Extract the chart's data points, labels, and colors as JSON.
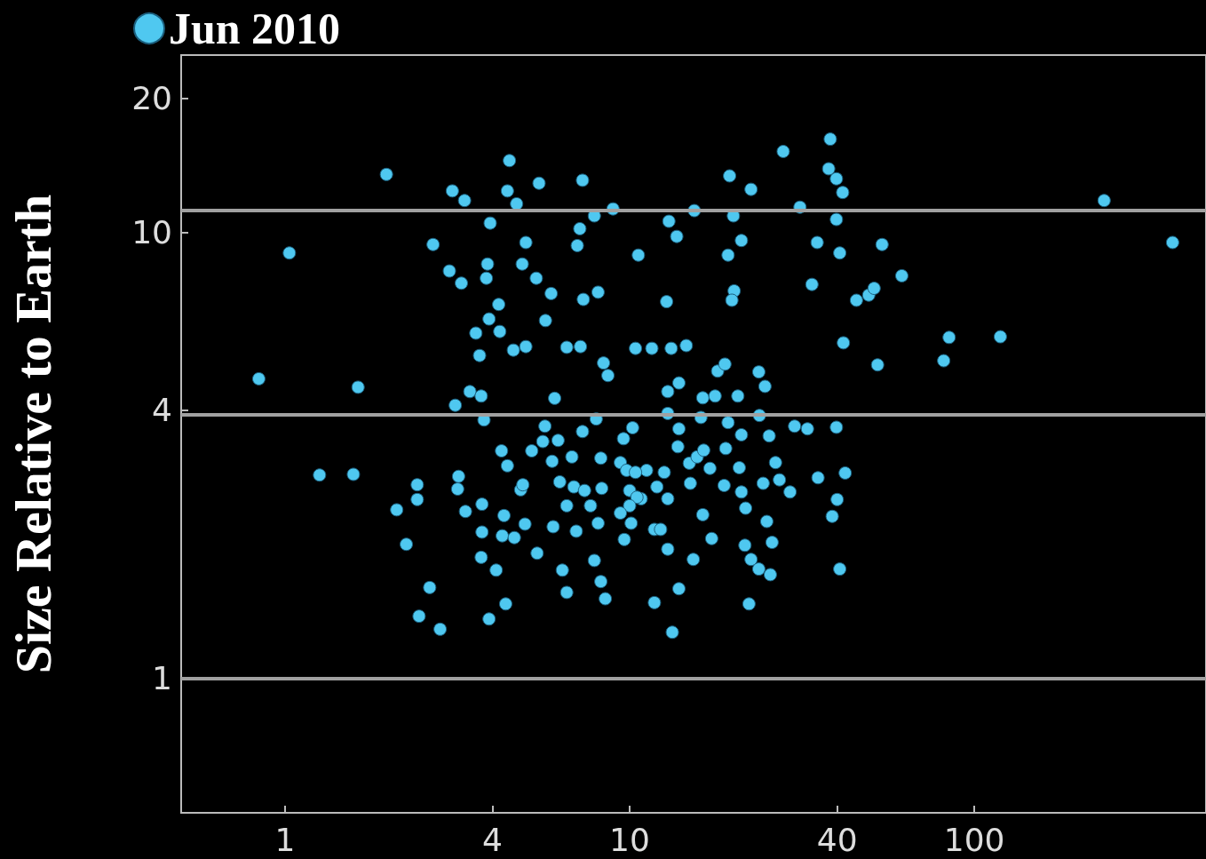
{
  "chart_data": {
    "type": "scatter",
    "ylabel": "Size Relative to Earth",
    "log": "xy",
    "grid": false,
    "legend": "top left",
    "marker": "circle",
    "xlim": [
      0.5,
      470
    ],
    "ylim": [
      0.5,
      25
    ],
    "xticks": [
      1,
      4,
      10,
      40,
      100
    ],
    "yticks": [
      1,
      4,
      10,
      20
    ],
    "ref_lines": [
      {
        "axis": "y",
        "value": 11.2,
        "color": "#a0a0a0"
      },
      {
        "axis": "y",
        "value": 3.9,
        "color": "#a0a0a0"
      },
      {
        "axis": "y",
        "value": 1,
        "color": "#a0a0a0"
      }
    ],
    "series": [
      {
        "name": "Jun 2010",
        "color": "#4fc8f0",
        "x": [
          0.84,
          1.03,
          1.26,
          1.58,
          1.63,
          1.97,
          2.11,
          2.25,
          2.42,
          2.42,
          2.45,
          2.63,
          2.82,
          2.69,
          3.0,
          3.06,
          3.25,
          3.32,
          3.12,
          3.19,
          3.17,
          3.34,
          3.44,
          3.58,
          3.67,
          3.71,
          3.78,
          3.73,
          3.73,
          3.71,
          3.84,
          3.87,
          3.94,
          3.91,
          4.17,
          4.2,
          3.91,
          4.1,
          4.25,
          4.42,
          4.32,
          4.27,
          4.37,
          4.42,
          4.48,
          4.6,
          4.7,
          4.88,
          5.0,
          5.0,
          4.83,
          4.97,
          4.63,
          5.36,
          5.46,
          5.7,
          5.92,
          6.06,
          5.68,
          5.39,
          6.38,
          6.57,
          6.0,
          5.96,
          6.27,
          6.57,
          7.05,
          7.3,
          7.34,
          7.17,
          7.2,
          8.1,
          7.9,
          8.95,
          8.4,
          8.65,
          8.0,
          7.3,
          8.25,
          8.3,
          7.9,
          8.25,
          8.5,
          7.0,
          8.1,
          9.6,
          10.2,
          9.65,
          10.1,
          10.4,
          10.6,
          11.6,
          12.8,
          13.0,
          13.7,
          13.2,
          14.6,
          12.9,
          13.9,
          12.9,
          13.9,
          13.8,
          12.6,
          12.9,
          12.9,
          13.9,
          13.3,
          11.8,
          11.8,
          10.8,
          11.2,
          15.3,
          15.4,
          16.3,
          17.3,
          16.1,
          16.3,
          17.7,
          18.0,
          18.9,
          19.3,
          19.5,
          20.0,
          20.1,
          19.8,
          21.1,
          20.6,
          19.3,
          19.0,
          18.8,
          20.8,
          21.1,
          21.1,
          21.7,
          21.6,
          22.5,
          22.2,
          22.5,
          23.7,
          24.7,
          23.7,
          25.6,
          25.9,
          25.0,
          24.4,
          25.4,
          26.5,
          27.2,
          29.2,
          23.8,
          27.9,
          30.1,
          31.2,
          32.8,
          33.8,
          35.0,
          35.2,
          37.8,
          38.2,
          39.8,
          41.5,
          39.8,
          40.7,
          41.7,
          39.8,
          40.0,
          38.7,
          42.2,
          40.7,
          45.5,
          49.4,
          51.2,
          54.0,
          52.4,
          61.6,
          81.5,
          84.5,
          119,
          238,
          376,
          9.4,
          9.8,
          10.4,
          10.0,
          10.5,
          12.3,
          12.0,
          15.0,
          14.9,
          15.7,
          16.4,
          17.1,
          10.0,
          9.4,
          6.89,
          7.4,
          7.7,
          6.57,
          6.8,
          5.6,
          5.2,
          6.2,
          4.9
        ],
        "values": [
          4.7,
          9.0,
          2.86,
          2.87,
          4.5,
          13.5,
          2.39,
          2.0,
          2.72,
          2.52,
          1.38,
          1.6,
          1.29,
          9.4,
          8.2,
          12.4,
          7.7,
          11.8,
          4.1,
          2.84,
          2.66,
          2.37,
          4.4,
          5.95,
          5.3,
          4.3,
          3.8,
          2.46,
          2.13,
          1.87,
          7.9,
          8.5,
          10.5,
          6.4,
          6.9,
          6.0,
          1.36,
          1.75,
          3.24,
          3.0,
          2.32,
          2.09,
          1.47,
          12.4,
          14.5,
          5.45,
          11.6,
          8.5,
          9.5,
          5.55,
          2.65,
          2.22,
          2.07,
          7.9,
          12.9,
          6.35,
          7.3,
          4.25,
          3.68,
          1.91,
          1.75,
          1.56,
          2.19,
          3.07,
          2.76,
          5.53,
          9.35,
          13.1,
          7.08,
          10.2,
          5.55,
          7.35,
          10.9,
          11.3,
          5.1,
          4.78,
          3.82,
          3.58,
          3.12,
          2.67,
          1.84,
          1.65,
          1.51,
          2.14,
          2.23,
          3.45,
          3.65,
          2.05,
          2.23,
          5.5,
          8.9,
          5.5,
          7.0,
          10.6,
          9.8,
          5.5,
          5.58,
          4.4,
          4.6,
          3.93,
          3.63,
          3.31,
          2.9,
          2.53,
          1.95,
          1.59,
          1.27,
          1.48,
          2.16,
          2.53,
          2.93,
          1.85,
          11.2,
          2.33,
          2.06,
          3.85,
          4.26,
          4.3,
          4.89,
          5.07,
          8.9,
          13.4,
          10.9,
          7.4,
          7.05,
          9.6,
          4.3,
          3.75,
          3.28,
          2.71,
          2.97,
          3.52,
          2.62,
          2.41,
          1.99,
          1.85,
          1.47,
          12.5,
          4.87,
          4.52,
          1.76,
          1.71,
          2.02,
          2.25,
          2.74,
          3.5,
          3.05,
          2.79,
          2.62,
          3.89,
          15.2,
          3.68,
          11.4,
          3.63,
          7.65,
          9.5,
          2.82,
          13.9,
          16.2,
          13.2,
          12.3,
          10.7,
          9.0,
          5.66,
          3.66,
          2.52,
          2.31,
          2.89,
          1.76,
          7.05,
          7.24,
          7.5,
          9.4,
          5.05,
          8.0,
          5.16,
          5.82,
          5.84,
          11.8,
          9.5,
          3.05,
          2.93,
          2.9,
          2.64,
          2.55,
          2.16,
          2.69,
          2.74,
          3.04,
          3.14,
          3.25,
          2.96,
          2.44,
          2.35,
          2.69,
          2.64,
          2.44,
          2.44,
          3.14,
          3.4,
          3.24,
          3.42,
          2.72
        ]
      }
    ]
  }
}
